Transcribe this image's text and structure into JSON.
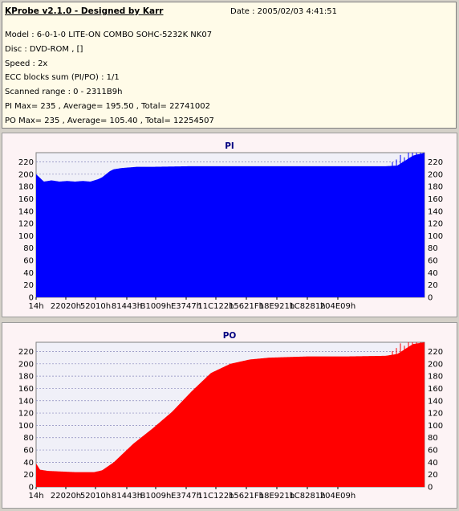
{
  "info": {
    "title": "KProbe v2.1.0 - Designed by Karr",
    "date": "Date : 2005/02/03 4:41:51",
    "lines": [
      "Model : 6-0-1-0 LITE-ON COMBO SOHC-5232K NK07",
      "Disc : DVD-ROM ,  []",
      "Speed : 2x",
      "ECC blocks sum (PI/PO) : 1/1",
      "Scanned range : 0 - 2311B9h",
      "PI Max= 235 , Average= 195.50 , Total= 22741002",
      "PO Max= 235 , Average= 105.40 , Total= 12254507"
    ]
  },
  "chart_data": [
    {
      "type": "area",
      "title": "PI",
      "color": "#0000ff",
      "ylim": [
        0,
        235
      ],
      "yticks": [
        0,
        20,
        40,
        60,
        80,
        100,
        120,
        140,
        160,
        180,
        200,
        220
      ],
      "xticks": [
        "14h",
        "22020h",
        "52010h",
        "81443h",
        "B1009h",
        "E3747h",
        "11C122h",
        "15621Fh",
        "18E921h",
        "1C8281h",
        "204E09h"
      ],
      "x": [
        0,
        2,
        4,
        6,
        8,
        10,
        12,
        14,
        16,
        17,
        18,
        19,
        20,
        22,
        24,
        26,
        28,
        30,
        40,
        60,
        80,
        90,
        93,
        94,
        95,
        96,
        97,
        98,
        99,
        100
      ],
      "y": [
        200,
        188,
        190,
        188,
        189,
        188,
        189,
        188,
        192,
        195,
        200,
        205,
        208,
        210,
        211,
        212,
        212,
        212,
        213,
        213,
        213,
        213,
        214,
        218,
        222,
        226,
        230,
        232,
        233,
        235
      ]
    },
    {
      "type": "area",
      "title": "PO",
      "color": "#ff0000",
      "ylim": [
        0,
        235
      ],
      "yticks": [
        0,
        20,
        40,
        60,
        80,
        100,
        120,
        140,
        160,
        180,
        200,
        220
      ],
      "xticks": [
        "14h",
        "22020h",
        "52010h",
        "81443h",
        "B1009h",
        "E3747h",
        "11C122h",
        "15621Fh",
        "18E921h",
        "1C8281h",
        "204E09h"
      ],
      "x": [
        0,
        1,
        3,
        10,
        15,
        17,
        20,
        25,
        30,
        35,
        40,
        45,
        50,
        55,
        60,
        70,
        80,
        90,
        93,
        95,
        97,
        99,
        100
      ],
      "y": [
        38,
        28,
        26,
        24,
        24,
        27,
        40,
        70,
        95,
        122,
        155,
        185,
        200,
        207,
        210,
        212,
        212,
        213,
        216,
        224,
        232,
        234,
        235
      ]
    }
  ]
}
